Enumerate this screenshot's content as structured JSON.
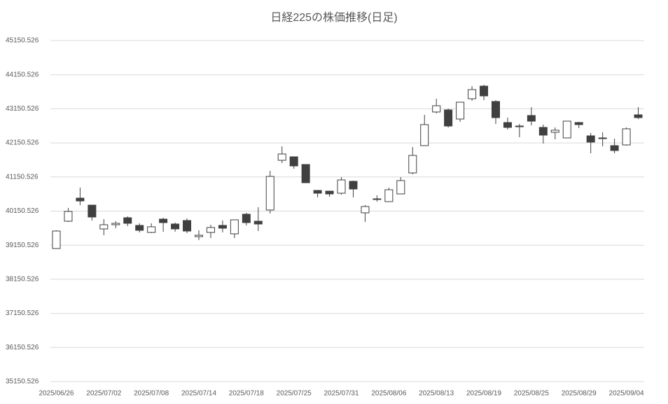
{
  "chart_data": {
    "type": "candlestick",
    "title": "日経225の株価推移(日足)",
    "categories": [
      "2025/06/26",
      null,
      null,
      null,
      "2025/07/02",
      null,
      null,
      null,
      "2025/07/08",
      null,
      null,
      null,
      "2025/07/14",
      null,
      null,
      null,
      "2025/07/18",
      null,
      null,
      null,
      "2025/07/25",
      null,
      null,
      null,
      "2025/07/31",
      null,
      null,
      null,
      "2025/08/06",
      null,
      null,
      null,
      "2025/08/13",
      null,
      null,
      null,
      "2025/08/19",
      null,
      null,
      null,
      "2025/08/25",
      null,
      null,
      null,
      "2025/08/29",
      null,
      null,
      null,
      "2025/09/04",
      null
    ],
    "open": [
      39053,
      39854,
      40531,
      40326,
      39628,
      39751,
      39956,
      39731,
      39525,
      39915,
      39772,
      39874,
      39402,
      39525,
      39731,
      39484,
      40059,
      39854,
      40182,
      41640,
      41743,
      41517,
      40757,
      40737,
      40675,
      41024,
      40100,
      40490,
      40429,
      40654,
      41270,
      42071,
      43057,
      43118,
      42851,
      43446,
      43816,
      43365,
      42748,
      42646,
      42954,
      42605,
      42461,
      42297,
      42748,
      42358,
      42297,
      42071,
      42091,
      42974
    ],
    "high": [
      39587,
      40244,
      40839,
      40326,
      39915,
      39854,
      39997,
      39792,
      39792,
      39956,
      39813,
      39936,
      39587,
      39751,
      39874,
      39895,
      40100,
      40264,
      41332,
      42050,
      41743,
      41517,
      40757,
      40737,
      41147,
      41045,
      40326,
      40613,
      40839,
      41147,
      42030,
      42974,
      43446,
      43159,
      43344,
      43816,
      43857,
      43406,
      42892,
      42707,
      43200,
      42687,
      42605,
      42789,
      42769,
      42441,
      42461,
      42276,
      42605,
      43200
    ],
    "low": [
      39053,
      39833,
      40326,
      39874,
      39443,
      39649,
      39710,
      39525,
      39505,
      39546,
      39546,
      39505,
      39300,
      39361,
      39525,
      39361,
      39731,
      39566,
      40080,
      41558,
      41394,
      40983,
      40552,
      40572,
      40634,
      40552,
      39833,
      40429,
      40429,
      40654,
      41229,
      42071,
      43016,
      42605,
      42769,
      43385,
      43406,
      42707,
      42543,
      42317,
      42666,
      42132,
      42256,
      42297,
      42584,
      41845,
      42050,
      41845,
      42071,
      42851
    ],
    "close": [
      39566,
      40141,
      40449,
      39977,
      39751,
      39792,
      39792,
      39587,
      39690,
      39813,
      39628,
      39566,
      39443,
      39669,
      39649,
      39895,
      39813,
      39772,
      41168,
      41825,
      41476,
      40983,
      40675,
      40654,
      41065,
      40798,
      40285,
      40511,
      40777,
      41045,
      41784,
      42687,
      43241,
      42646,
      43344,
      43713,
      43529,
      42892,
      42605,
      42625,
      42789,
      42379,
      42523,
      42789,
      42687,
      42174,
      42276,
      41927,
      42564,
      42892
    ],
    "up_color": "#ffffff",
    "down_color": "#404040",
    "edge_color": "#404040",
    "ylim": [
      35150.526,
      45150.526
    ],
    "yticks": [
      35150.526,
      36150.526,
      37150.526,
      38150.526,
      39150.526,
      40150.526,
      41150.526,
      42150.526,
      43150.526,
      44150.526,
      45150.526
    ],
    "grid": true
  }
}
